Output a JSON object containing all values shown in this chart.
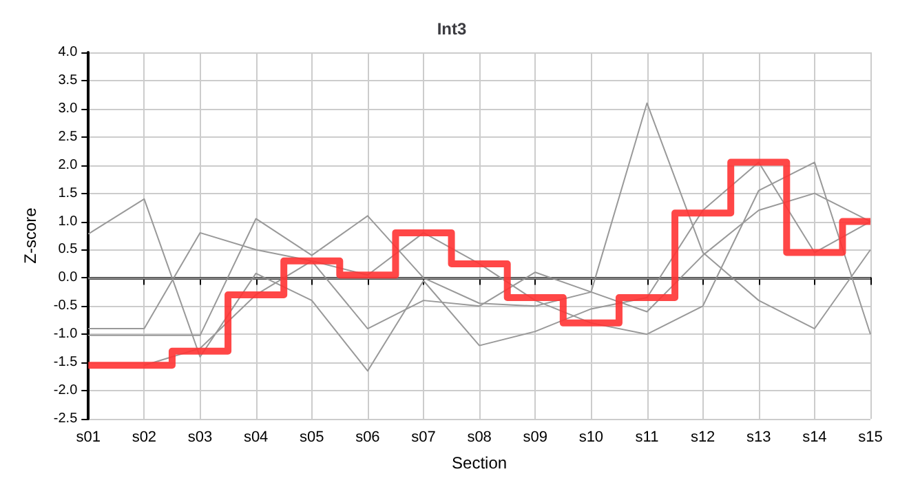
{
  "chart_data": {
    "type": "line",
    "title": "Int3",
    "xlabel": "Section",
    "ylabel": "Z-score",
    "categories": [
      "s01",
      "s02",
      "s03",
      "s04",
      "s05",
      "s06",
      "s07",
      "s08",
      "s09",
      "s10",
      "s11",
      "s12",
      "s13",
      "s14",
      "s15"
    ],
    "series": [
      {
        "color": "#999999",
        "values": [
          0.78,
          1.4,
          -1.4,
          0.08,
          -0.4,
          -1.65,
          -0.05,
          -1.2,
          -0.95,
          -0.55,
          -0.35,
          1.2,
          2.05,
          0.45,
          1.0
        ]
      },
      {
        "color": "#999999",
        "values": [
          -0.9,
          -0.9,
          0.8,
          0.5,
          0.3,
          0.05,
          0.8,
          0.25,
          -0.4,
          -0.8,
          -1.0,
          -0.5,
          1.55,
          2.05,
          -1.0
        ]
      },
      {
        "color": "#999999",
        "values": [
          -1.02,
          -1.02,
          -1.02,
          1.05,
          0.4,
          1.1,
          0.0,
          -0.45,
          -0.5,
          -0.25,
          3.1,
          0.45,
          -0.4,
          -0.9,
          0.5
        ]
      },
      {
        "color": "#999999",
        "values": [
          null,
          -1.55,
          -1.25,
          -0.3,
          0.3,
          -0.9,
          -0.4,
          -0.5,
          0.1,
          -0.25,
          -0.6,
          0.4,
          1.2,
          1.5,
          1.0
        ]
      },
      {
        "type": "step",
        "color": "#ff3333",
        "values": [
          -1.55,
          -1.55,
          -1.3,
          -0.3,
          0.3,
          0.05,
          0.8,
          0.25,
          -0.35,
          -0.8,
          -0.35,
          1.15,
          2.05,
          0.45,
          1.0
        ]
      }
    ],
    "ylim": [
      -2.5,
      4
    ],
    "yticks": [
      -2.5,
      {
        "value": -2,
        "label": "-2.0"
      },
      -1.5,
      {
        "value": -1,
        "label": "-1.0"
      },
      -0.5,
      {
        "value": 0,
        "label": "0.0"
      },
      0.5,
      {
        "value": 1,
        "label": "1.0"
      },
      1.5,
      {
        "value": 2,
        "label": "2.0"
      },
      2.5,
      {
        "value": 3,
        "label": "3.0"
      },
      3.5,
      {
        "value": 4,
        "label": "4.0"
      }
    ],
    "ref_lines": [
      {
        "axis": "y",
        "value": 0,
        "color": "#888888"
      }
    ],
    "grid": true,
    "marker": "none"
  }
}
